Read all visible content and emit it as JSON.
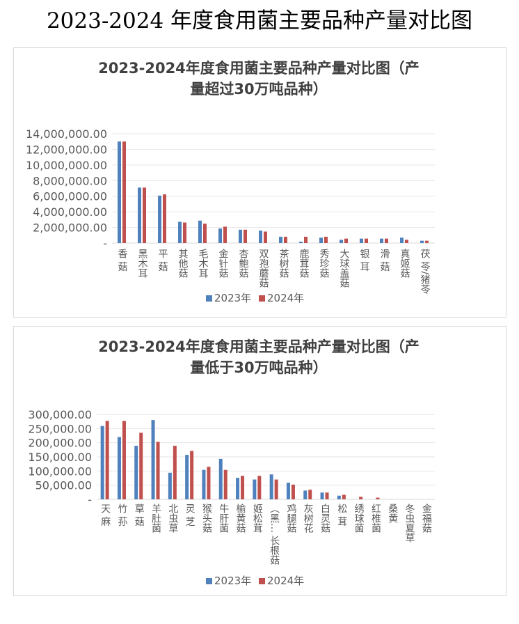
{
  "page_title": "2023-2024 年度食用菌主要品种产量对比图",
  "colors": {
    "y2023": "#4f81bd",
    "y2024": "#c0504d",
    "grid": "#e6e6e6",
    "axis_text": "#595959"
  },
  "chart_data": [
    {
      "type": "bar",
      "title_lines": [
        "2023-2024年度食用菌主要品种产量对比图（产",
        "量超过30万吨品种）"
      ],
      "categories": [
        "香 菇",
        "黑木耳",
        "平 菇",
        "其他菇",
        "毛木耳",
        "金针菇",
        "杏鲍菇",
        "双孢蘑菇",
        "茶树菇",
        "鹿茸菇",
        "秀珍菇",
        "大球盖菇",
        "银 耳",
        "滑 菇",
        "真姬菇",
        "茯 苓/猪苓"
      ],
      "series": [
        {
          "name": "2023年",
          "values": [
            13000000,
            7100000,
            6080000,
            2720000,
            2870000,
            1860000,
            1710000,
            1590000,
            810000,
            180000,
            690000,
            420000,
            570000,
            570000,
            690000,
            300000
          ]
        },
        {
          "name": "2024年",
          "values": [
            13000000,
            7100000,
            6230000,
            2630000,
            2480000,
            2100000,
            1710000,
            1470000,
            810000,
            810000,
            810000,
            570000,
            570000,
            570000,
            420000,
            300000
          ]
        }
      ],
      "ylim": [
        0,
        14000000
      ],
      "yticks": [
        "-",
        "2,000,000.00",
        "4,000,000.00",
        "6,000,000.00",
        "8,000,000.00",
        "10,000,000.00",
        "12,000,000.00",
        "14,000,000.00"
      ],
      "grid": true,
      "legend": "bottom"
    },
    {
      "type": "bar",
      "title_lines": [
        "2023-2024年度食用菌主要品种产量对比图（产",
        "量低于30万吨品种）"
      ],
      "categories": [
        "天 麻",
        "竹 荪",
        "草 菇",
        "羊肚菌",
        "北虫草",
        "灵 芝",
        "猴头菇",
        "牛肝菌",
        "榆黄菇",
        "姬松茸",
        "（黑…\n长根菇",
        "鸡腿菇",
        "灰树花",
        "白灵菇",
        "松 茸",
        "绣球菌",
        "红椎菌",
        "桑黄",
        "冬虫夏草",
        "金福菇"
      ],
      "series": [
        {
          "name": "2023年",
          "values": [
            259000,
            220000,
            189000,
            280000,
            94000,
            157000,
            104000,
            143000,
            76000,
            70000,
            88000,
            59000,
            31000,
            24000,
            13000,
            0,
            0,
            0,
            0,
            0
          ]
        },
        {
          "name": "2024年",
          "values": [
            277000,
            277000,
            235000,
            203000,
            189000,
            171000,
            115000,
            104000,
            83000,
            83000,
            70000,
            52000,
            34000,
            24000,
            16000,
            9000,
            6000,
            0,
            0,
            0
          ]
        }
      ],
      "ylim": [
        0,
        300000
      ],
      "yticks": [
        "-",
        "50,000.00",
        "100,000.00",
        "150,000.00",
        "200,000.00",
        "250,000.00",
        "300,000.00"
      ],
      "grid": true,
      "legend": "bottom"
    }
  ]
}
